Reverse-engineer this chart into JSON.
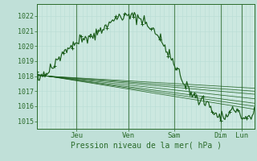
{
  "xlabel": "Pression niveau de la mer( hPa )",
  "ylim": [
    1014.5,
    1022.8
  ],
  "yticks": [
    1015,
    1016,
    1017,
    1018,
    1019,
    1020,
    1021,
    1022
  ],
  "day_labels": [
    "Jeu",
    "Ven",
    "Sam",
    "Dim",
    "Lun"
  ],
  "day_positions": [
    0.18,
    0.42,
    0.63,
    0.845,
    0.94
  ],
  "bg_color": "#cce8e0",
  "grid_color_v": "#b8dcd4",
  "grid_color_h": "#b8dcd4",
  "line_color": "#1a5c1a",
  "text_color": "#2a6b2a",
  "background_outer": "#c0e0d8",
  "n_vgrid": 48,
  "xlim": [
    0,
    1
  ]
}
